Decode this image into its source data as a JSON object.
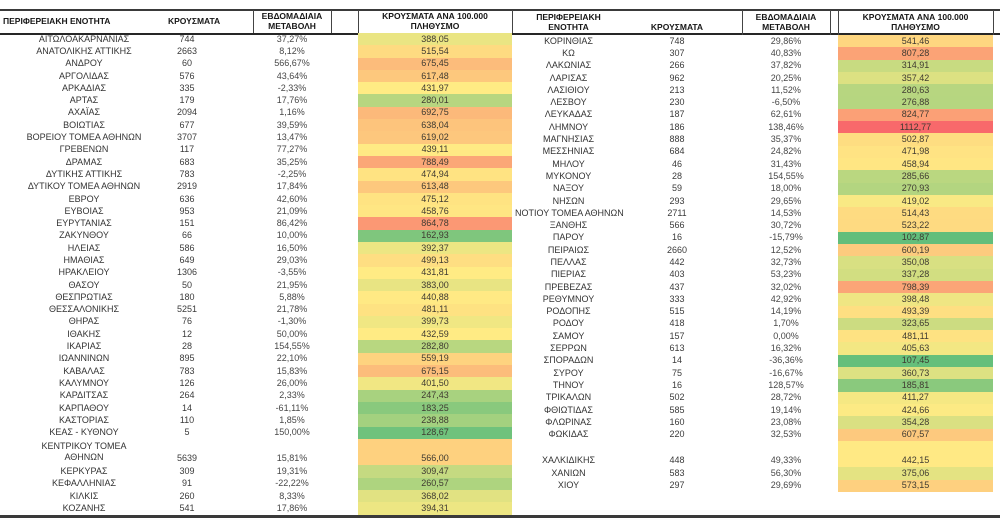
{
  "columns": {
    "region": "ΠΕΡΙΦΕΡΕΙΑΚΗ ΕΝΟΤΗΤΑ",
    "cases": "ΚΡΟΥΣΜΑΤΑ",
    "weekly_change": "ΕΒΔΟΜΑΔΙΑΙΑ ΜΕΤΑΒΟΛΗ",
    "per_100k": "ΚΡΟΥΣΜΑΤΑ ΑΝΑ 100.000 ΠΛΗΘΥΣΜΟ"
  },
  "color_scale": {
    "min_color": "#63BE7B",
    "mid_color": "#FFEB84",
    "max_color": "#F8696B"
  },
  "border_color": "#3a3a3a",
  "left_table": {
    "rows": [
      {
        "region": "ΑΙΤΩΛΟΑΚΑΡΝΑΝΙΑΣ",
        "cases": "744",
        "weekly_change": "37,27%",
        "per_100k": "388,05"
      },
      {
        "region": "ΑΝΑΤΟΛΙΚΗΣ ΑΤΤΙΚΗΣ",
        "cases": "2663",
        "weekly_change": "8,12%",
        "per_100k": "515,54"
      },
      {
        "region": "ΑΝΔΡΟΥ",
        "cases": "60",
        "weekly_change": "566,67%",
        "per_100k": "675,45"
      },
      {
        "region": "ΑΡΓΟΛΙΔΑΣ",
        "cases": "576",
        "weekly_change": "43,64%",
        "per_100k": "617,48"
      },
      {
        "region": "ΑΡΚΑΔΙΑΣ",
        "cases": "335",
        "weekly_change": "-2,33%",
        "per_100k": "431,97"
      },
      {
        "region": "ΑΡΤΑΣ",
        "cases": "179",
        "weekly_change": "17,76%",
        "per_100k": "280,01"
      },
      {
        "region": "ΑΧΑΪΑΣ",
        "cases": "2094",
        "weekly_change": "1,16%",
        "per_100k": "692,75"
      },
      {
        "region": "ΒΟΙΩΤΙΑΣ",
        "cases": "677",
        "weekly_change": "39,59%",
        "per_100k": "638,04"
      },
      {
        "region": "ΒΟΡΕΙΟΥ ΤΟΜΕΑ ΑΘΗΝΩΝ",
        "cases": "3707",
        "weekly_change": "13,47%",
        "per_100k": "619,02"
      },
      {
        "region": "ΓΡΕΒΕΝΩΝ",
        "cases": "117",
        "weekly_change": "77,27%",
        "per_100k": "439,11"
      },
      {
        "region": "ΔΡΑΜΑΣ",
        "cases": "683",
        "weekly_change": "35,25%",
        "per_100k": "788,49"
      },
      {
        "region": "ΔΥΤΙΚΗΣ ΑΤΤΙΚΗΣ",
        "cases": "783",
        "weekly_change": "-2,25%",
        "per_100k": "474,94"
      },
      {
        "region": "ΔΥΤΙΚΟΥ ΤΟΜΕΑ ΑΘΗΝΩΝ",
        "cases": "2919",
        "weekly_change": "17,84%",
        "per_100k": "613,48"
      },
      {
        "region": "ΕΒΡΟΥ",
        "cases": "636",
        "weekly_change": "42,60%",
        "per_100k": "475,12"
      },
      {
        "region": "ΕΥΒΟΙΑΣ",
        "cases": "953",
        "weekly_change": "21,09%",
        "per_100k": "458,76"
      },
      {
        "region": "ΕΥΡΥΤΑΝΙΑΣ",
        "cases": "151",
        "weekly_change": "86,42%",
        "per_100k": "864,78"
      },
      {
        "region": "ΖΑΚΥΝΘΟΥ",
        "cases": "66",
        "weekly_change": "10,00%",
        "per_100k": "162,93"
      },
      {
        "region": "ΗΛΕΙΑΣ",
        "cases": "586",
        "weekly_change": "16,50%",
        "per_100k": "392,37"
      },
      {
        "region": "ΗΜΑΘΙΑΣ",
        "cases": "649",
        "weekly_change": "29,03%",
        "per_100k": "499,13"
      },
      {
        "region": "ΗΡΑΚΛΕΙΟΥ",
        "cases": "1306",
        "weekly_change": "-3,55%",
        "per_100k": "431,81"
      },
      {
        "region": "ΘΑΣΟΥ",
        "cases": "50",
        "weekly_change": "21,95%",
        "per_100k": "383,00"
      },
      {
        "region": "ΘΕΣΠΡΩΤΙΑΣ",
        "cases": "180",
        "weekly_change": "5,88%",
        "per_100k": "440,88"
      },
      {
        "region": "ΘΕΣΣΑΛΟΝΙΚΗΣ",
        "cases": "5251",
        "weekly_change": "21,78%",
        "per_100k": "481,11"
      },
      {
        "region": "ΘΗΡΑΣ",
        "cases": "76",
        "weekly_change": "-1,30%",
        "per_100k": "399,73"
      },
      {
        "region": "ΙΘΑΚΗΣ",
        "cases": "12",
        "weekly_change": "50,00%",
        "per_100k": "432,59"
      },
      {
        "region": "ΙΚΑΡΙΑΣ",
        "cases": "28",
        "weekly_change": "154,55%",
        "per_100k": "282,80"
      },
      {
        "region": "ΙΩΑΝΝΙΝΩΝ",
        "cases": "895",
        "weekly_change": "22,10%",
        "per_100k": "559,19"
      },
      {
        "region": "ΚΑΒΑΛΑΣ",
        "cases": "783",
        "weekly_change": "15,83%",
        "per_100k": "675,15"
      },
      {
        "region": "ΚΑΛΥΜΝΟΥ",
        "cases": "126",
        "weekly_change": "26,00%",
        "per_100k": "401,50"
      },
      {
        "region": "ΚΑΡΔΙΤΣΑΣ",
        "cases": "264",
        "weekly_change": "2,33%",
        "per_100k": "247,43"
      },
      {
        "region": "ΚΑΡΠΑΘΟΥ",
        "cases": "14",
        "weekly_change": "-61,11%",
        "per_100k": "183,25"
      },
      {
        "region": "ΚΑΣΤΟΡΙΑΣ",
        "cases": "110",
        "weekly_change": "1,85%",
        "per_100k": "238,88"
      },
      {
        "region": "ΚΕΑΣ - ΚΥΘΝΟΥ",
        "cases": "5",
        "weekly_change": "150,00%",
        "per_100k": "128,67"
      },
      {
        "region": "ΚΕΝΤΡΙΚΟΥ ΤΟΜΕΑ\nΑΘΗΝΩΝ",
        "cases": "5639",
        "weekly_change": "15,81%",
        "per_100k": "566,00",
        "tall": true,
        "wrap": true
      },
      {
        "region": "ΚΕΡΚΥΡΑΣ",
        "cases": "309",
        "weekly_change": "19,31%",
        "per_100k": "309,47"
      },
      {
        "region": "ΚΕΦΑΛΛΗΝΙΑΣ",
        "cases": "91",
        "weekly_change": "-22,22%",
        "per_100k": "260,57"
      },
      {
        "region": "ΚΙΛΚΙΣ",
        "cases": "260",
        "weekly_change": "8,33%",
        "per_100k": "368,02"
      },
      {
        "region": "ΚΟΖΑΝΗΣ",
        "cases": "541",
        "weekly_change": "17,86%",
        "per_100k": "394,31"
      }
    ]
  },
  "right_table": {
    "rows": [
      {
        "region": "ΚΟΡΙΝΘΙΑΣ",
        "cases": "748",
        "weekly_change": "29,86%",
        "per_100k": "541,46"
      },
      {
        "region": "ΚΩ",
        "cases": "307",
        "weekly_change": "40,83%",
        "per_100k": "807,28"
      },
      {
        "region": "ΛΑΚΩΝΙΑΣ",
        "cases": "266",
        "weekly_change": "37,82%",
        "per_100k": "314,91"
      },
      {
        "region": "ΛΑΡΙΣΑΣ",
        "cases": "962",
        "weekly_change": "20,25%",
        "per_100k": "357,42"
      },
      {
        "region": "ΛΑΣΙΘΙΟΥ",
        "cases": "213",
        "weekly_change": "11,52%",
        "per_100k": "280,63"
      },
      {
        "region": "ΛΕΣΒΟΥ",
        "cases": "230",
        "weekly_change": "-6,50%",
        "per_100k": "276,88"
      },
      {
        "region": "ΛΕΥΚΑΔΑΣ",
        "cases": "187",
        "weekly_change": "62,61%",
        "per_100k": "824,77"
      },
      {
        "region": "ΛΗΜΝΟΥ",
        "cases": "186",
        "weekly_change": "138,46%",
        "per_100k": "1112,77"
      },
      {
        "region": "ΜΑΓΝΗΣΙΑΣ",
        "cases": "888",
        "weekly_change": "35,37%",
        "per_100k": "502,87"
      },
      {
        "region": "ΜΕΣΣΗΝΙΑΣ",
        "cases": "684",
        "weekly_change": "24,82%",
        "per_100k": "471,98"
      },
      {
        "region": "ΜΗΛΟΥ",
        "cases": "46",
        "weekly_change": "31,43%",
        "per_100k": "458,94"
      },
      {
        "region": "ΜΥΚΟΝΟΥ",
        "cases": "28",
        "weekly_change": "154,55%",
        "per_100k": "285,66"
      },
      {
        "region": "ΝΑΞΟΥ",
        "cases": "59",
        "weekly_change": "18,00%",
        "per_100k": "270,93"
      },
      {
        "region": "ΝΗΣΩΝ",
        "cases": "293",
        "weekly_change": "29,65%",
        "per_100k": "419,02"
      },
      {
        "region": "ΝΟΤΙΟΥ ΤΟΜΕΑ ΑΘΗΝΩΝ",
        "cases": "2711",
        "weekly_change": "14,53%",
        "per_100k": "514,43"
      },
      {
        "region": "ΞΑΝΘΗΣ",
        "cases": "566",
        "weekly_change": "30,72%",
        "per_100k": "523,22"
      },
      {
        "region": "ΠΑΡΟΥ",
        "cases": "16",
        "weekly_change": "-15,79%",
        "per_100k": "102,87"
      },
      {
        "region": "ΠΕΙΡΑΙΩΣ",
        "cases": "2660",
        "weekly_change": "12,52%",
        "per_100k": "600,19"
      },
      {
        "region": "ΠΕΛΛΑΣ",
        "cases": "442",
        "weekly_change": "32,73%",
        "per_100k": "350,08"
      },
      {
        "region": "ΠΙΕΡΙΑΣ",
        "cases": "403",
        "weekly_change": "53,23%",
        "per_100k": "337,28"
      },
      {
        "region": "ΠΡΕΒΕΖΑΣ",
        "cases": "437",
        "weekly_change": "32,02%",
        "per_100k": "798,39"
      },
      {
        "region": "ΡΕΘΥΜΝΟΥ",
        "cases": "333",
        "weekly_change": "42,92%",
        "per_100k": "398,48"
      },
      {
        "region": "ΡΟΔΟΠΗΣ",
        "cases": "515",
        "weekly_change": "14,19%",
        "per_100k": "493,39"
      },
      {
        "region": "ΡΟΔΟΥ",
        "cases": "418",
        "weekly_change": "1,70%",
        "per_100k": "323,65"
      },
      {
        "region": "ΣΑΜΟΥ",
        "cases": "157",
        "weekly_change": "0,00%",
        "per_100k": "481,11"
      },
      {
        "region": "ΣΕΡΡΩΝ",
        "cases": "613",
        "weekly_change": "16,32%",
        "per_100k": "405,63"
      },
      {
        "region": "ΣΠΟΡΑΔΩΝ",
        "cases": "14",
        "weekly_change": "-36,36%",
        "per_100k": "107,45"
      },
      {
        "region": "ΣΥΡΟΥ",
        "cases": "75",
        "weekly_change": "-16,67%",
        "per_100k": "360,73"
      },
      {
        "region": "ΤΗΝΟΥ",
        "cases": "16",
        "weekly_change": "128,57%",
        "per_100k": "185,81"
      },
      {
        "region": "ΤΡΙΚΑΛΩΝ",
        "cases": "502",
        "weekly_change": "28,72%",
        "per_100k": "411,27"
      },
      {
        "region": "ΦΘΙΩΤΙΔΑΣ",
        "cases": "585",
        "weekly_change": "19,14%",
        "per_100k": "424,66"
      },
      {
        "region": "ΦΛΩΡΙΝΑΣ",
        "cases": "160",
        "weekly_change": "23,08%",
        "per_100k": "354,28"
      },
      {
        "region": "ΦΩΚΙΔΑΣ",
        "cases": "220",
        "weekly_change": "32,53%",
        "per_100k": "607,57"
      },
      {
        "region": "ΧΑΛΚΙΔΙΚΗΣ",
        "cases": "448",
        "weekly_change": "49,33%",
        "per_100k": "442,15",
        "tall": true
      },
      {
        "region": "ΧΑΝΙΩΝ",
        "cases": "583",
        "weekly_change": "56,30%",
        "per_100k": "375,06"
      },
      {
        "region": "ΧΙΟΥ",
        "cases": "297",
        "weekly_change": "29,69%",
        "per_100k": "573,15"
      }
    ]
  }
}
